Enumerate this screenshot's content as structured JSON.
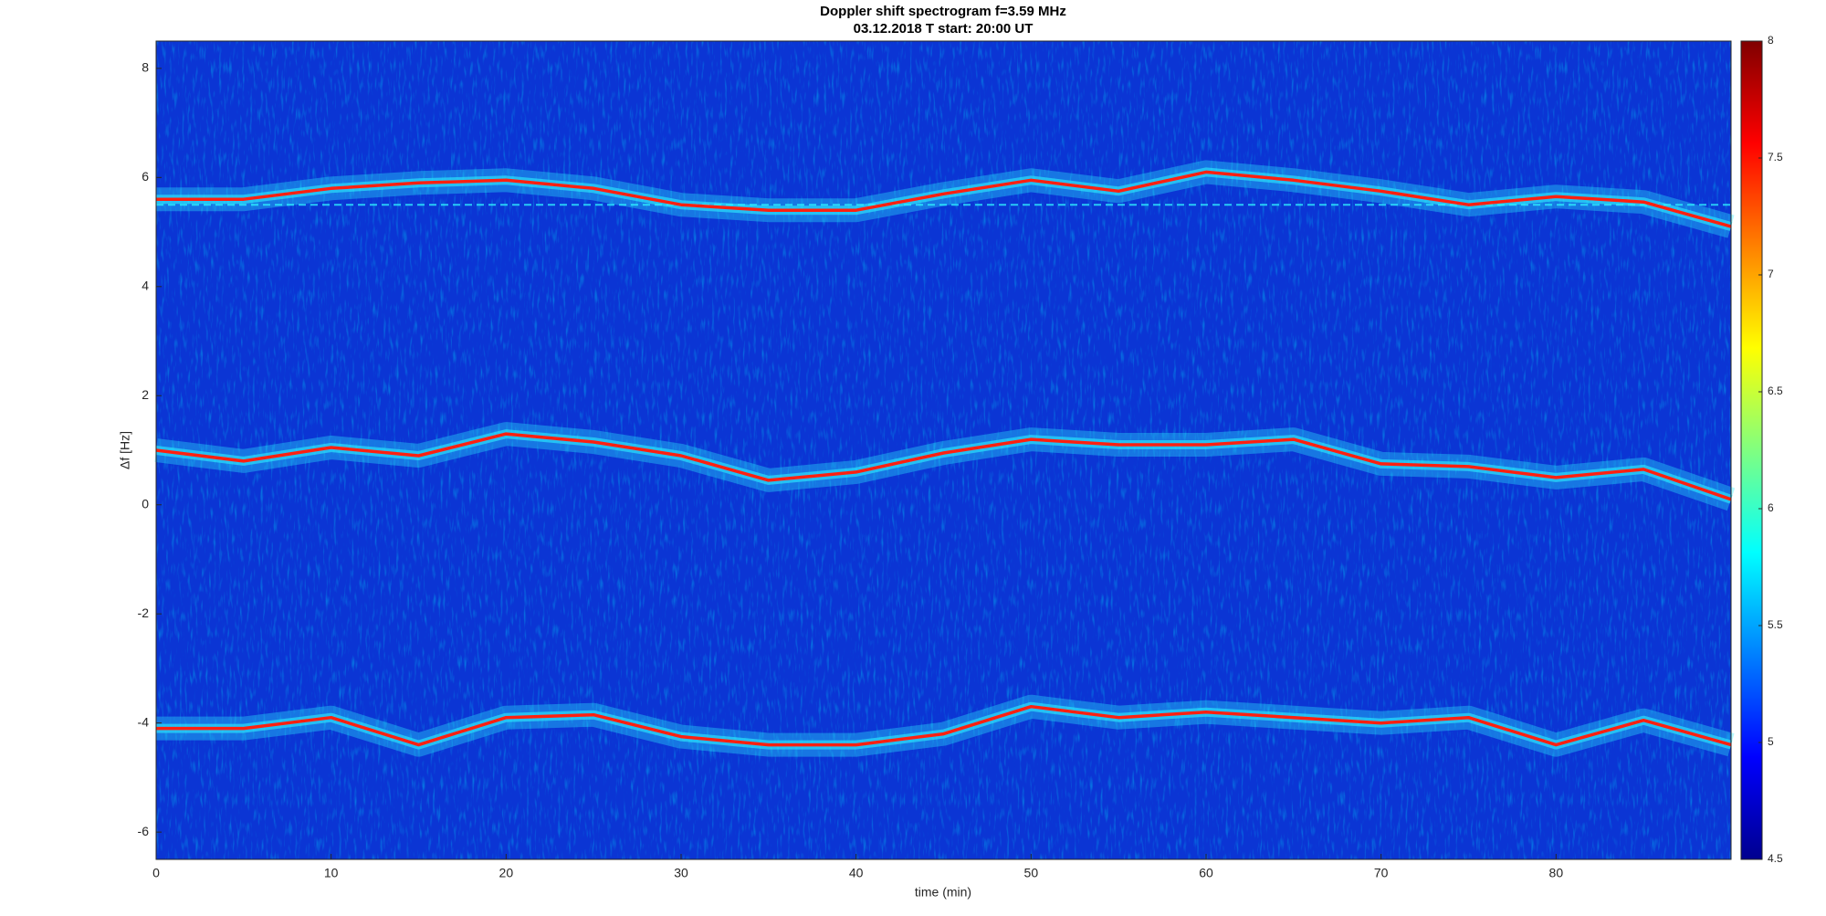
{
  "chart_data": {
    "type": "spectrogram",
    "title": "Doppler shift spectrogram f=3.59 MHz",
    "subtitle": "03.12.2018   T start: 20:00 UT",
    "x_label": "time (min)",
    "y_label": "Δf [Hz]",
    "x": [
      0,
      5,
      10,
      15,
      20,
      25,
      30,
      35,
      40,
      45,
      50,
      55,
      60,
      65,
      70,
      75,
      80,
      85,
      90
    ],
    "traces": [
      {
        "values": [
          5.6,
          5.6,
          5.8,
          5.9,
          5.95,
          5.8,
          5.5,
          5.4,
          5.4,
          5.7,
          5.95,
          5.75,
          6.1,
          5.95,
          5.75,
          5.5,
          5.65,
          5.55,
          5.1
        ]
      },
      {
        "values": [
          1.0,
          0.8,
          1.05,
          0.9,
          1.3,
          1.15,
          0.9,
          0.45,
          0.6,
          0.95,
          1.2,
          1.1,
          1.1,
          1.2,
          0.75,
          0.7,
          0.5,
          0.65,
          0.1
        ]
      },
      {
        "values": [
          -4.1,
          -4.1,
          -3.9,
          -4.4,
          -3.9,
          -3.85,
          -4.25,
          -4.4,
          -4.4,
          -4.2,
          -3.7,
          -3.9,
          -3.8,
          -3.9,
          -4.0,
          -3.9,
          -4.4,
          -3.95,
          -4.4
        ]
      }
    ],
    "reference_line": 5.5,
    "xlim": [
      0,
      90
    ],
    "xticks": [
      0,
      10,
      20,
      30,
      40,
      50,
      60,
      70,
      80
    ],
    "ylim": [
      -6.5,
      8.5
    ],
    "yticks": [
      -6,
      -4,
      -2,
      0,
      2,
      4,
      6,
      8
    ],
    "clim": [
      4.5,
      8
    ],
    "cticks": [
      4.5,
      5,
      5.5,
      6,
      6.5,
      7,
      7.5,
      8
    ],
    "colormap": [
      "#00008f",
      "#0000ff",
      "#0080ff",
      "#00ffff",
      "#80ff80",
      "#ffff00",
      "#ff8000",
      "#ff0000",
      "#800000"
    ],
    "background_color": "#0b35d4",
    "halo_color": "#2ff0ff",
    "line_color": "#ff2010"
  }
}
